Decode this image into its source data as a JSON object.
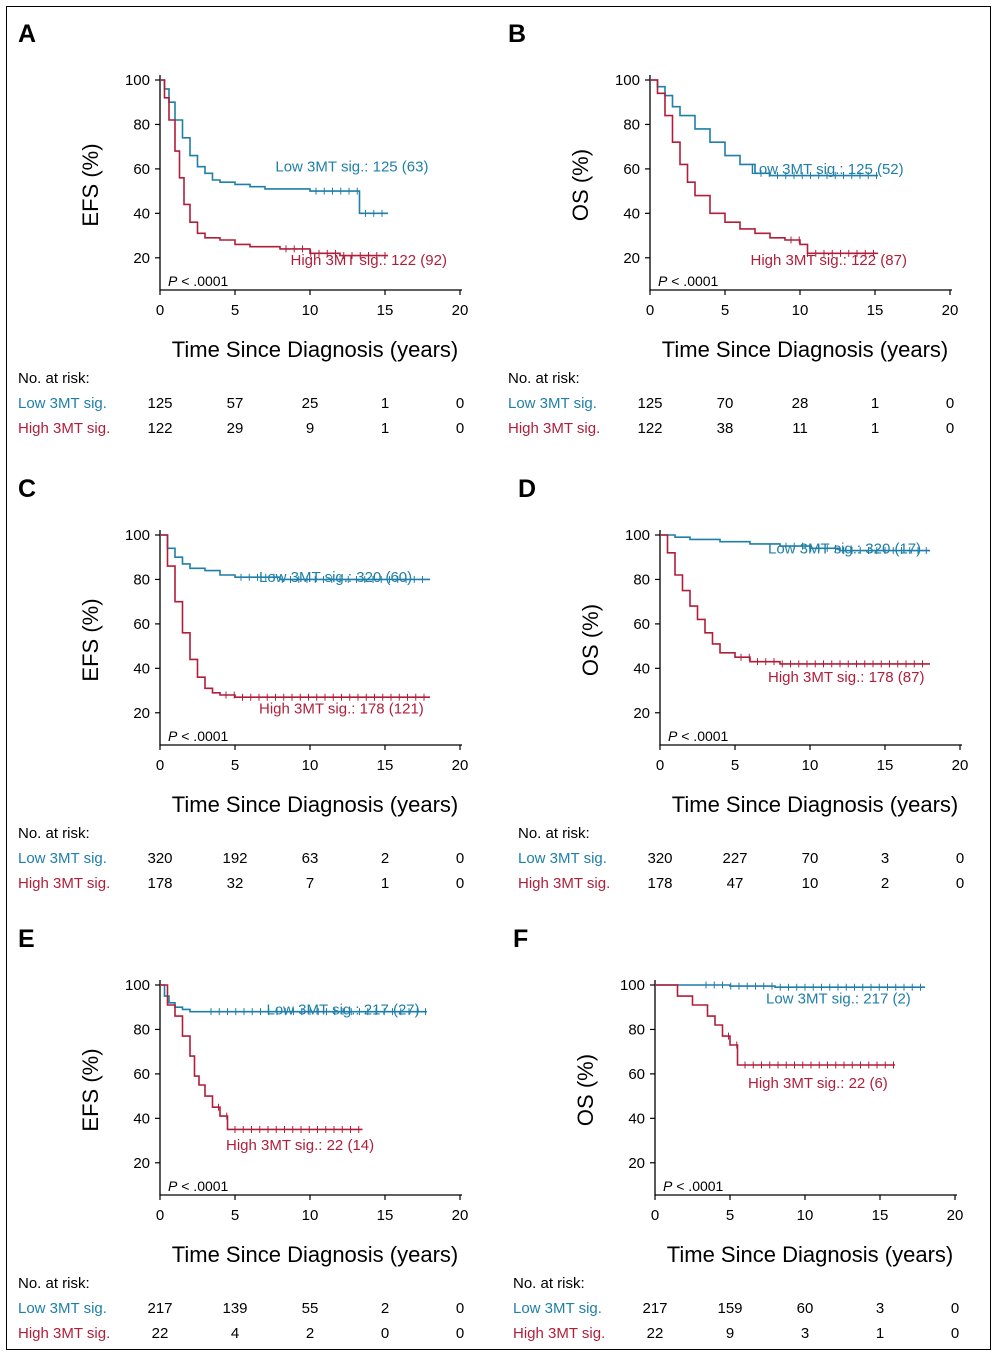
{
  "colors": {
    "low": "#1f7fa8",
    "high": "#b01e3a",
    "axis": "#000000"
  },
  "risk_header": "No. at risk:",
  "row_labels": {
    "low": "Low 3MT sig.",
    "high": "High 3MT sig."
  },
  "chart_data": [
    {
      "panel": "A",
      "type": "line",
      "ylabel": "EFS (%)",
      "xlabel": "Time Since Diagnosis (years)",
      "xlim": [
        0,
        20
      ],
      "ylim": [
        10,
        100
      ],
      "xticks": [
        0,
        5,
        10,
        15,
        20
      ],
      "yticks": [
        20,
        40,
        60,
        80,
        100
      ],
      "pvalue": "< .0001",
      "series": [
        {
          "key": "low",
          "name": "Low 3MT sig.: 125 (63)",
          "x": [
            0,
            0.3,
            0.6,
            1,
            1.5,
            2,
            2.5,
            3,
            3.5,
            4,
            5,
            6,
            7,
            8,
            10,
            13.3,
            13.3,
            15.2
          ],
          "y": [
            100,
            96,
            90,
            82,
            74,
            66,
            61,
            58,
            55,
            54,
            53,
            52,
            51,
            51,
            50,
            50,
            40,
            40
          ]
        },
        {
          "key": "high",
          "name": "High 3MT sig.: 122 (92)",
          "x": [
            0,
            0.3,
            0.6,
            1,
            1.3,
            1.6,
            2,
            2.5,
            3,
            4,
            5,
            6,
            8,
            10,
            12,
            15.2
          ],
          "y": [
            100,
            92,
            82,
            68,
            56,
            44,
            36,
            31,
            29,
            28,
            26,
            25,
            24,
            22,
            21,
            21
          ]
        }
      ],
      "risk": {
        "low": [
          "125",
          "57",
          "25",
          "1",
          "0"
        ],
        "high": [
          "122",
          "29",
          "9",
          "1",
          "0"
        ]
      }
    },
    {
      "panel": "B",
      "type": "line",
      "ylabel": "OS (%)",
      "xlabel": "Time Since Diagnosis (years)",
      "xlim": [
        0,
        20
      ],
      "ylim": [
        10,
        100
      ],
      "xticks": [
        0,
        5,
        10,
        15,
        20
      ],
      "yticks": [
        20,
        40,
        60,
        80,
        100
      ],
      "pvalue": "< .0001",
      "series": [
        {
          "key": "low",
          "name": "Low 3MT sig.: 125 (52)",
          "x": [
            0,
            0.5,
            1,
            1.5,
            2,
            3,
            4,
            5,
            6,
            7,
            8,
            10,
            15.2
          ],
          "y": [
            100,
            97,
            93,
            88,
            84,
            78,
            72,
            66,
            62,
            58,
            57,
            57,
            57
          ]
        },
        {
          "key": "high",
          "name": "High 3MT sig.: 122 (87)",
          "x": [
            0,
            0.5,
            1,
            1.5,
            2,
            2.5,
            3,
            4,
            5,
            6,
            7,
            8,
            9,
            10,
            10.5,
            15.2
          ],
          "y": [
            100,
            94,
            84,
            72,
            62,
            54,
            48,
            40,
            36,
            33,
            31,
            29,
            28,
            26,
            22,
            22
          ]
        }
      ],
      "risk": {
        "low": [
          "125",
          "70",
          "28",
          "1",
          "0"
        ],
        "high": [
          "122",
          "38",
          "11",
          "1",
          "0"
        ]
      }
    },
    {
      "panel": "C",
      "type": "line",
      "ylabel": "EFS (%)",
      "xlabel": "Time Since Diagnosis (years)",
      "xlim": [
        0,
        20
      ],
      "ylim": [
        10,
        100
      ],
      "xticks": [
        0,
        5,
        10,
        15,
        20
      ],
      "yticks": [
        20,
        40,
        60,
        80,
        100
      ],
      "pvalue": "< .0001",
      "series": [
        {
          "key": "low",
          "name": "Low 3MT sig.: 320 (60)",
          "x": [
            0,
            0.5,
            1,
            1.5,
            2,
            3,
            4,
            5,
            6,
            8,
            18
          ],
          "y": [
            100,
            94,
            90,
            87,
            85,
            84,
            82,
            81,
            81,
            80,
            80
          ]
        },
        {
          "key": "high",
          "name": "High 3MT sig.: 178 (121)",
          "x": [
            0,
            0.5,
            1,
            1.5,
            2,
            2.5,
            3,
            3.5,
            4,
            5,
            6,
            18
          ],
          "y": [
            100,
            86,
            70,
            56,
            44,
            36,
            31,
            29,
            28,
            27,
            27,
            27
          ]
        }
      ],
      "risk": {
        "low": [
          "320",
          "192",
          "63",
          "2",
          "0"
        ],
        "high": [
          "178",
          "32",
          "7",
          "1",
          "0"
        ]
      }
    },
    {
      "panel": "D",
      "type": "line",
      "ylabel": "OS (%)",
      "xlabel": "Time Since Diagnosis (years)",
      "xlim": [
        0,
        20
      ],
      "ylim": [
        10,
        100
      ],
      "xticks": [
        0,
        5,
        10,
        15,
        20
      ],
      "yticks": [
        20,
        40,
        60,
        80,
        100
      ],
      "pvalue": "< .0001",
      "series": [
        {
          "key": "low",
          "name": "Low 3MT sig.: 320 (17)",
          "x": [
            0,
            1,
            2,
            4,
            6,
            8,
            10,
            12,
            18
          ],
          "y": [
            100,
            99,
            98,
            97,
            96,
            95,
            94,
            93,
            93
          ]
        },
        {
          "key": "high",
          "name": "High 3MT sig.: 178 (87)",
          "x": [
            0,
            0.5,
            1,
            1.5,
            2,
            2.5,
            3,
            3.5,
            4,
            5,
            6,
            8,
            18
          ],
          "y": [
            100,
            92,
            82,
            75,
            68,
            62,
            56,
            51,
            47,
            45,
            43,
            42,
            42
          ]
        }
      ],
      "risk": {
        "low": [
          "320",
          "227",
          "70",
          "3",
          "0"
        ],
        "high": [
          "178",
          "47",
          "10",
          "2",
          "0"
        ]
      }
    },
    {
      "panel": "E",
      "type": "line",
      "ylabel": "EFS (%)",
      "xlabel": "Time Since Diagnosis (years)",
      "xlim": [
        0,
        20
      ],
      "ylim": [
        10,
        100
      ],
      "xticks": [
        0,
        5,
        10,
        15,
        20
      ],
      "yticks": [
        20,
        40,
        60,
        80,
        100
      ],
      "pvalue": "< .0001",
      "series": [
        {
          "key": "low",
          "name": "Low 3MT sig.: 217 (27)",
          "x": [
            0,
            0.3,
            0.6,
            1,
            1.5,
            2,
            3,
            5,
            10,
            17.8
          ],
          "y": [
            100,
            95,
            92,
            90,
            89,
            88,
            88,
            88,
            88,
            88
          ]
        },
        {
          "key": "high",
          "name": "High 3MT sig.: 22 (14)",
          "x": [
            0,
            0.5,
            1,
            1.5,
            2,
            2.3,
            2.6,
            3,
            3.5,
            4,
            4.5,
            13.5
          ],
          "y": [
            100,
            91,
            86,
            77,
            68,
            59,
            55,
            50,
            45,
            41,
            35,
            35
          ]
        }
      ],
      "risk": {
        "low": [
          "217",
          "139",
          "55",
          "2",
          "0"
        ],
        "high": [
          "22",
          "4",
          "2",
          "0",
          "0"
        ]
      }
    },
    {
      "panel": "F",
      "type": "line",
      "ylabel": "OS (%)",
      "xlabel": "Time Since Diagnosis (years)",
      "xlim": [
        0,
        20
      ],
      "ylim": [
        10,
        100
      ],
      "xticks": [
        0,
        5,
        10,
        15,
        20
      ],
      "yticks": [
        20,
        40,
        60,
        80,
        100
      ],
      "pvalue": "< .0001",
      "series": [
        {
          "key": "low",
          "name": "Low 3MT sig.: 217 (2)",
          "x": [
            0,
            3,
            5,
            8,
            18
          ],
          "y": [
            100,
            100,
            99.5,
            99,
            99
          ]
        },
        {
          "key": "high",
          "name": "High 3MT sig.: 22 (6)",
          "x": [
            0,
            1.5,
            2.5,
            3.5,
            4,
            4.5,
            5,
            5.5,
            16
          ],
          "y": [
            100,
            95,
            91,
            86,
            82,
            77,
            73,
            64,
            64
          ]
        }
      ],
      "risk": {
        "low": [
          "217",
          "159",
          "60",
          "3",
          "0"
        ],
        "high": [
          "22",
          "9",
          "3",
          "1",
          "0"
        ]
      }
    }
  ]
}
